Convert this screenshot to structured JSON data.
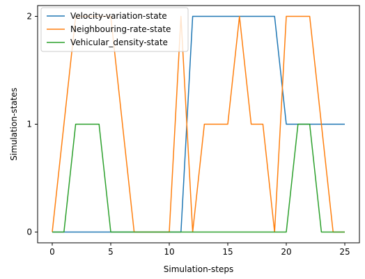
{
  "chart_data": {
    "type": "line",
    "xlabel": "Simulation-steps",
    "ylabel": "Simulation-states",
    "xlim": [
      -1.25,
      26.25
    ],
    "ylim": [
      -0.1,
      2.1
    ],
    "xticks": [
      0,
      5,
      10,
      15,
      20,
      25
    ],
    "yticks": [
      0,
      1,
      2
    ],
    "grid": false,
    "legend_position": "top-left",
    "x": [
      0,
      1,
      2,
      3,
      4,
      5,
      6,
      7,
      8,
      9,
      10,
      11,
      12,
      13,
      14,
      15,
      16,
      17,
      18,
      19,
      20,
      21,
      22,
      23,
      24,
      25
    ],
    "series": [
      {
        "name": "Velocity-variation-state",
        "color": "#1f77b4",
        "values": [
          0,
          0,
          0,
          0,
          0,
          0,
          0,
          0,
          0,
          0,
          0,
          0,
          2,
          2,
          2,
          2,
          2,
          2,
          2,
          2,
          1,
          1,
          1,
          1,
          1,
          1
        ]
      },
      {
        "name": "Neighbouring-rate-state",
        "color": "#ff7f0e",
        "values": [
          0,
          1,
          2,
          2,
          2,
          2,
          1,
          0,
          0,
          0,
          0,
          2,
          0,
          1,
          1,
          1,
          2,
          1,
          1,
          0,
          2,
          2,
          2,
          1,
          0,
          0
        ]
      },
      {
        "name": "Vehicular_density-state",
        "color": "#2ca02c",
        "values": [
          0,
          0,
          1,
          1,
          1,
          0,
          0,
          0,
          0,
          0,
          0,
          0,
          0,
          0,
          0,
          0,
          0,
          0,
          0,
          0,
          0,
          1,
          1,
          0,
          0,
          0
        ]
      }
    ]
  }
}
